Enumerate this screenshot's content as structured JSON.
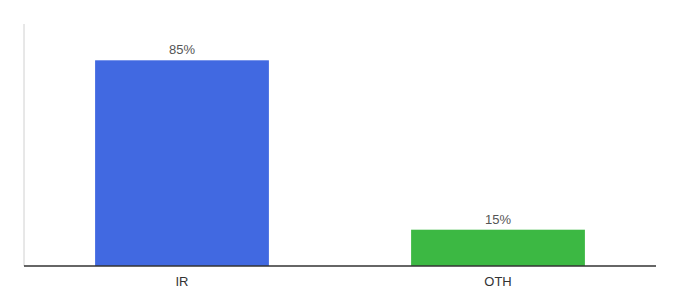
{
  "chart_data": {
    "type": "bar",
    "categories": [
      "IR",
      "OTH"
    ],
    "values": [
      85,
      15
    ],
    "colors": [
      "#4169e1",
      "#3cb843"
    ],
    "value_labels": [
      "85%",
      "15%"
    ],
    "data_labels": true,
    "ylim": [
      0,
      100
    ],
    "grid": false,
    "tick_labels": "x"
  }
}
